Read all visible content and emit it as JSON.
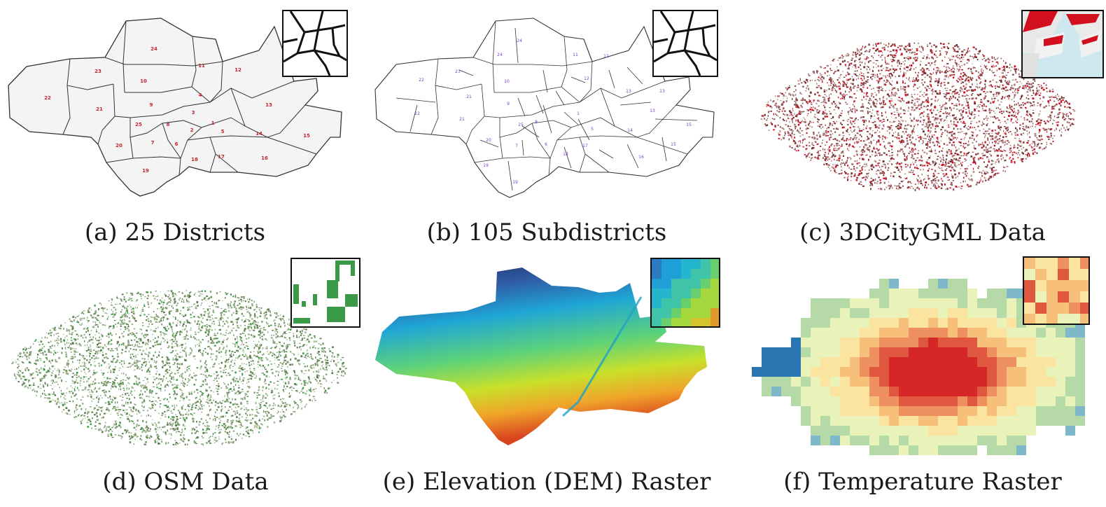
{
  "figure": {
    "panels": [
      {
        "id": "a",
        "caption": "(a) 25 Districts"
      },
      {
        "id": "b",
        "caption": "(b) 105 Subdistricts"
      },
      {
        "id": "c",
        "caption": "(c) 3DCityGML Data"
      },
      {
        "id": "d",
        "caption": "(d) OSM Data"
      },
      {
        "id": "e",
        "caption": "(e) Elevation (DEM) Raster"
      },
      {
        "id": "f",
        "caption": "(f) Temperature Raster"
      }
    ]
  },
  "districts": {
    "labels": [
      "24",
      "11",
      "12",
      "23",
      "10",
      "4",
      "22",
      "21",
      "9",
      "3",
      "13",
      "25",
      "8",
      "1",
      "2",
      "5",
      "14",
      "15",
      "20",
      "7",
      "6",
      "17",
      "18",
      "16",
      "19"
    ]
  },
  "subdistricts": {
    "labels": [
      "24",
      "24",
      "11",
      "12",
      "23",
      "10",
      "12",
      "22",
      "21",
      "9",
      "13",
      "22",
      "21",
      "25",
      "8",
      "1",
      "5",
      "14",
      "15",
      "20",
      "7",
      "6",
      "18",
      "17",
      "16",
      "19",
      "19",
      "15",
      "13",
      "13"
    ]
  },
  "colors": {
    "district_fill": "#f4f4f4",
    "district_stroke": "#333333",
    "district_label": "#c0262d",
    "subdistrict_label": "#7a3fc4",
    "citygml_building": "#8a3a3a",
    "citygml_roof": "#d10f1f",
    "osm_building": "#4c8b2f",
    "dem_low": "#1f2a6b",
    "dem_high": "#d9441f",
    "temp_cool": "#2b75b3",
    "temp_hot": "#d62728"
  }
}
